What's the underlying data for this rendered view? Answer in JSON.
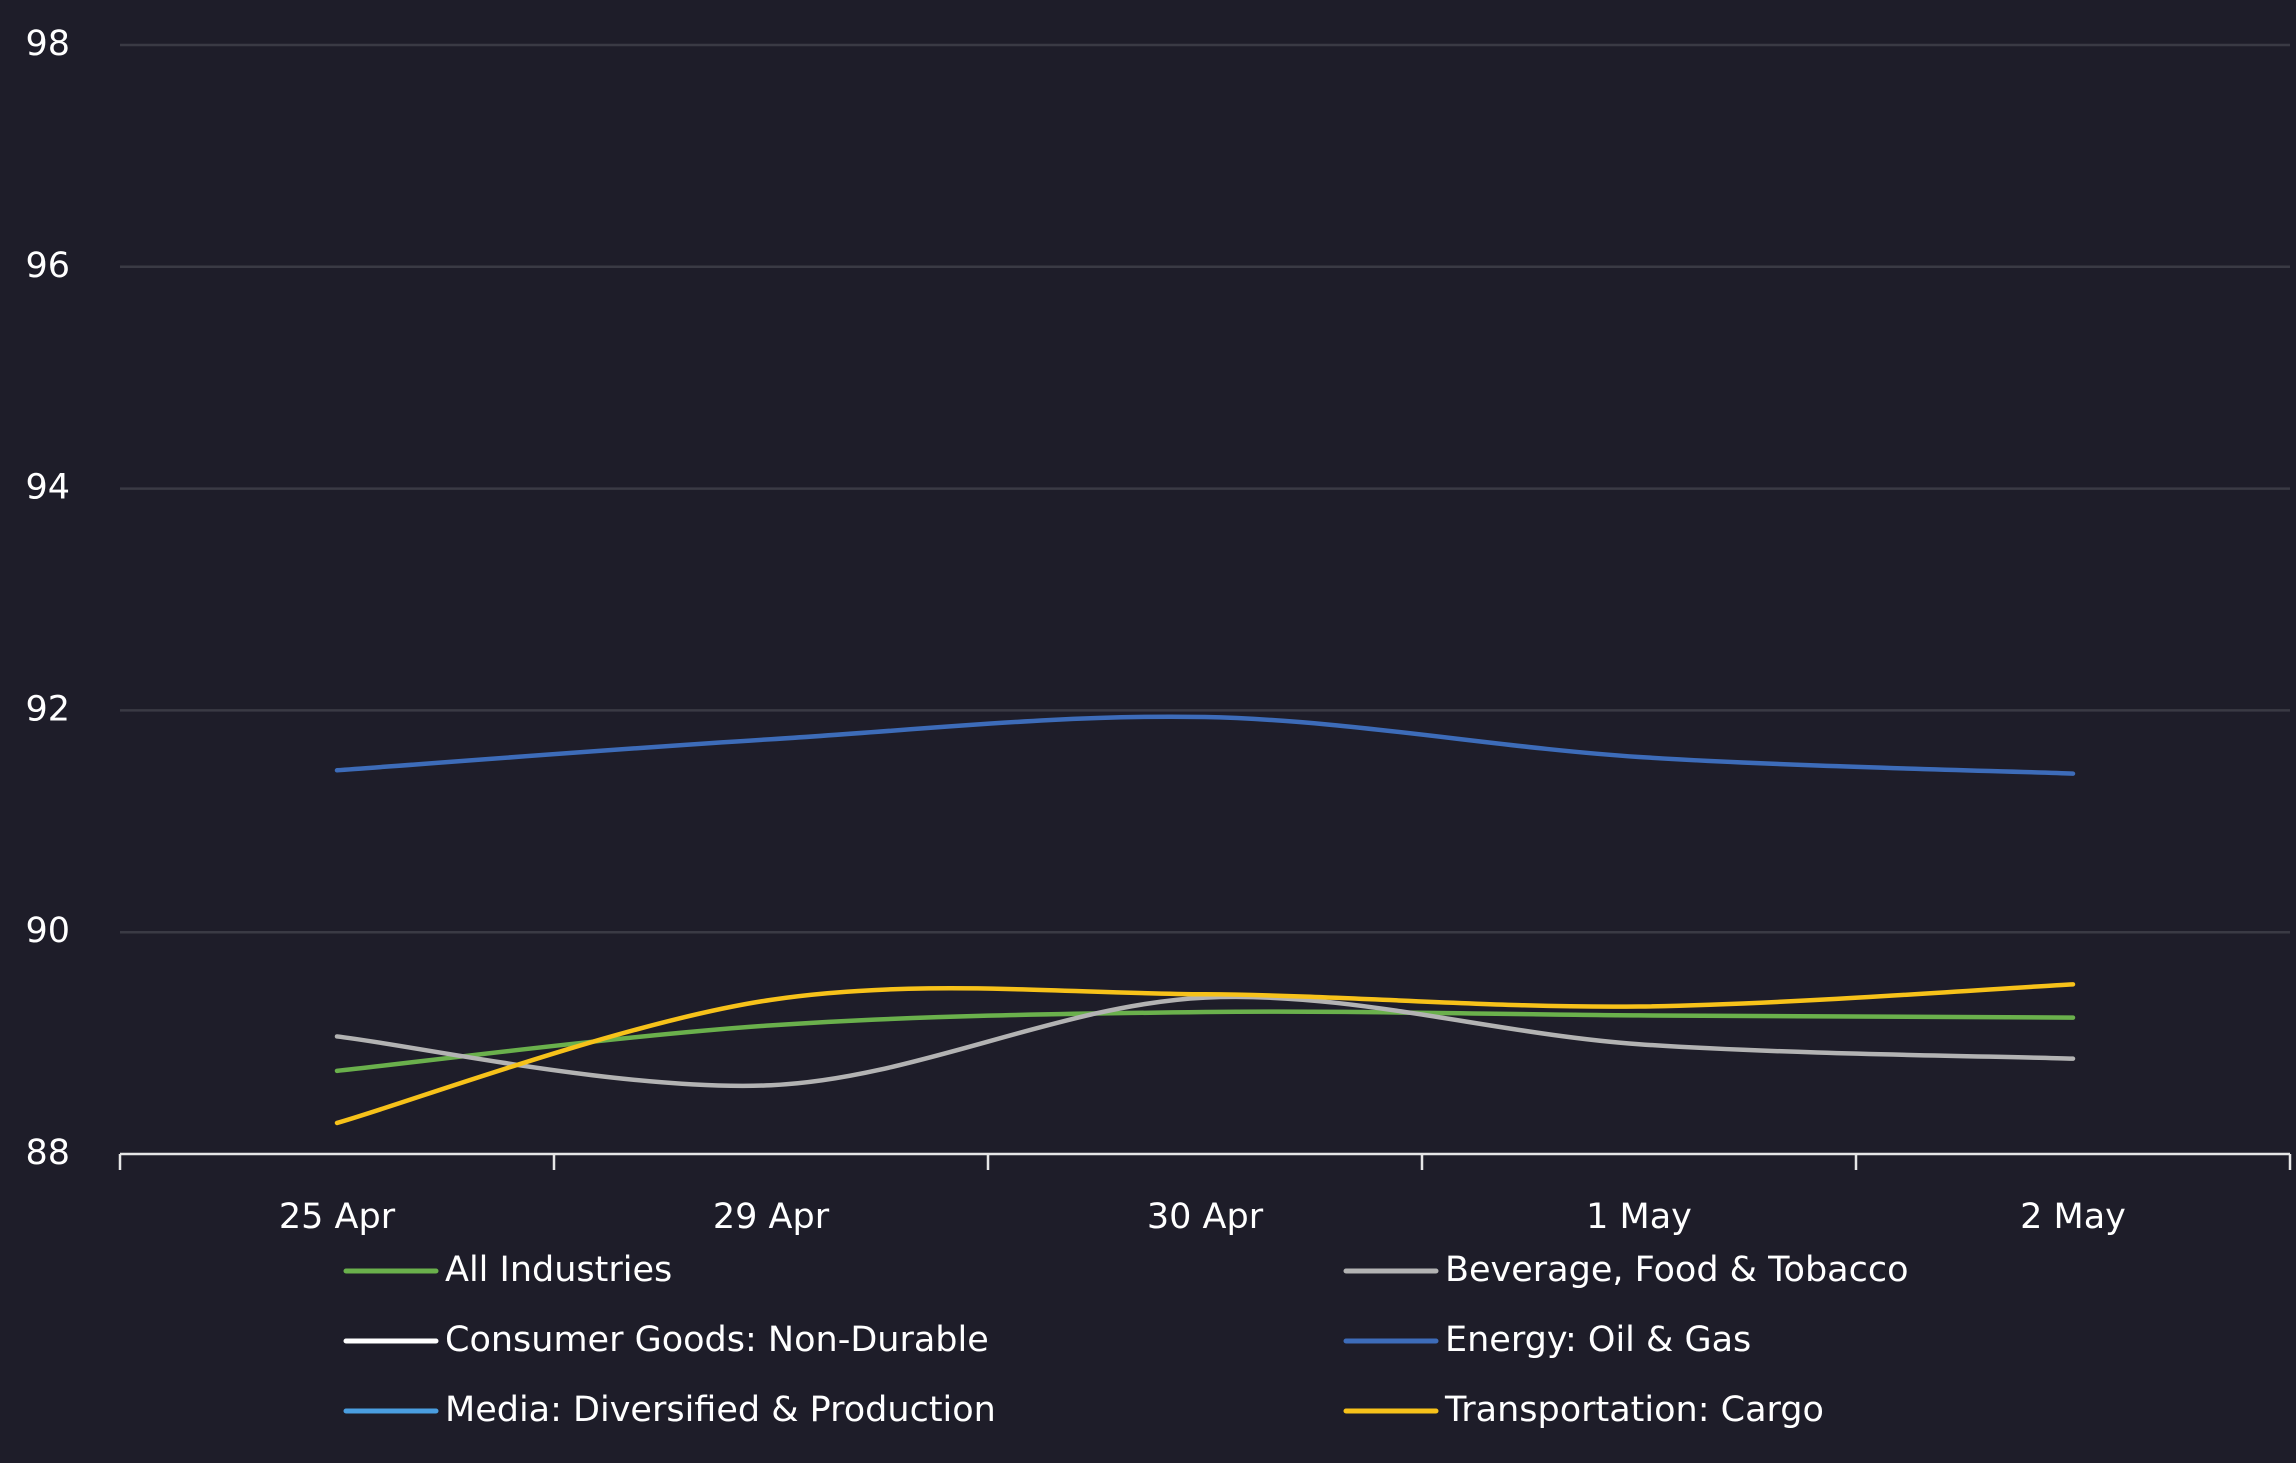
{
  "chart_data": {
    "type": "line",
    "categories": [
      "25 Apr",
      "29 Apr",
      "30 Apr",
      "1 May",
      "2 May"
    ],
    "series": [
      {
        "name": "All Industries",
        "color": "#6ab04c",
        "values": [
          88.75,
          89.16,
          89.28,
          89.25,
          89.23
        ]
      },
      {
        "name": "Beverage, Food & Tobacco",
        "color": "#b3b3b3",
        "values": [
          89.06,
          88.62,
          89.41,
          88.99,
          88.86
        ]
      },
      {
        "name": "Consumer Goods: Non-Durable",
        "color": "#ffffff",
        "values": [
          null,
          null,
          null,
          null,
          null
        ]
      },
      {
        "name": "Energy: Oil & Gas",
        "color": "#3d6cb9",
        "values": [
          91.46,
          91.74,
          91.94,
          91.58,
          91.43
        ]
      },
      {
        "name": "Media: Diversified & Production",
        "color": "#4a9ee0",
        "values": [
          null,
          null,
          null,
          null,
          null
        ]
      },
      {
        "name": "Transportation: Cargo",
        "color": "#f7c21a",
        "values": [
          88.28,
          89.39,
          89.44,
          89.33,
          89.53
        ]
      }
    ],
    "ylim": [
      88,
      98
    ],
    "yticks": [
      88,
      90,
      92,
      94,
      96,
      98
    ],
    "grid": true,
    "smooth": true
  }
}
